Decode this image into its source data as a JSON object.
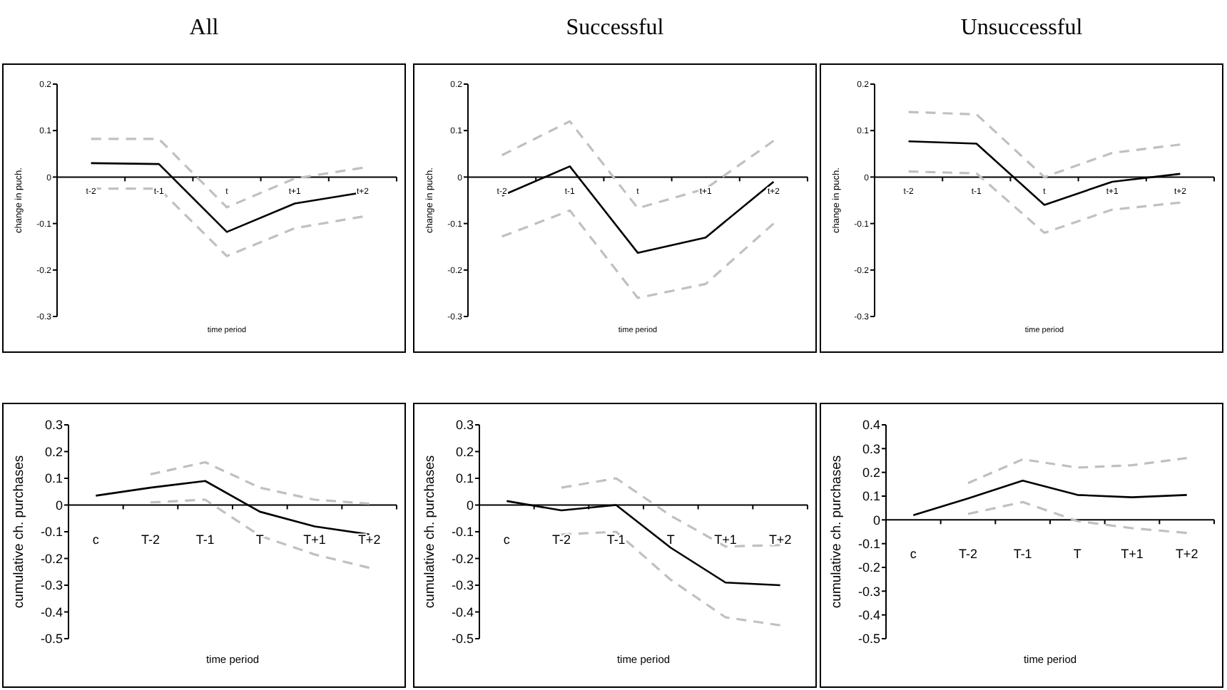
{
  "chart_data": [
    {
      "type": "line",
      "title": "All",
      "xlabel": "time period",
      "ylabel": "change in puch.",
      "categories": [
        "t-2",
        "t-1",
        "t",
        "t+1",
        "t+2"
      ],
      "ylim": [
        -0.3,
        0.2
      ],
      "yticks": [
        -0.3,
        -0.2,
        -0.1,
        0,
        0.1,
        0.2
      ],
      "series": [
        {
          "color": "#c0c0c0",
          "line_style": "dashed",
          "values": [
            0.082,
            0.082,
            -0.065,
            -0.003,
            0.02
          ]
        },
        {
          "color": "#000000",
          "line_style": "solid",
          "values": [
            0.03,
            0.028,
            -0.118,
            -0.057,
            -0.033
          ]
        },
        {
          "color": "#c0c0c0",
          "line_style": "dashed",
          "values": [
            -0.025,
            -0.025,
            -0.17,
            -0.11,
            -0.085
          ]
        }
      ]
    },
    {
      "type": "line",
      "title": "Successful",
      "xlabel": "time period",
      "ylabel": "change in puch.",
      "categories": [
        "t-2",
        "t-1",
        "t",
        "t+1",
        "t+2"
      ],
      "ylim": [
        -0.3,
        0.2
      ],
      "yticks": [
        -0.3,
        -0.2,
        -0.1,
        0,
        0.1,
        0.2
      ],
      "series": [
        {
          "color": "#c0c0c0",
          "line_style": "dashed",
          "values": [
            0.047,
            0.12,
            -0.067,
            -0.025,
            0.078
          ]
        },
        {
          "color": "#000000",
          "line_style": "solid",
          "values": [
            -0.04,
            0.023,
            -0.163,
            -0.13,
            -0.01
          ]
        },
        {
          "color": "#c0c0c0",
          "line_style": "dashed",
          "values": [
            -0.128,
            -0.072,
            -0.26,
            -0.23,
            -0.1
          ]
        }
      ]
    },
    {
      "type": "line",
      "title": "Unsuccessful",
      "xlabel": "time period",
      "ylabel": "change in puch.",
      "categories": [
        "t-2",
        "t-1",
        "t",
        "t+1",
        "t+2"
      ],
      "ylim": [
        -0.3,
        0.2
      ],
      "yticks": [
        -0.3,
        -0.2,
        -0.1,
        0,
        0.1,
        0.2
      ],
      "series": [
        {
          "color": "#c0c0c0",
          "line_style": "dashed",
          "values": [
            0.14,
            0.135,
            0.0,
            0.052,
            0.07
          ]
        },
        {
          "color": "#000000",
          "line_style": "solid",
          "values": [
            0.077,
            0.072,
            -0.06,
            -0.01,
            0.007
          ]
        },
        {
          "color": "#c0c0c0",
          "line_style": "dashed",
          "values": [
            0.012,
            0.008,
            -0.12,
            -0.07,
            -0.055
          ]
        }
      ]
    },
    {
      "type": "line",
      "xlabel": "time period",
      "ylabel": "cumulative ch. purchases",
      "categories": [
        "c",
        "T-2",
        "T-1",
        "T",
        "T+1",
        "T+2"
      ],
      "ylim": [
        -0.5,
        0.3
      ],
      "yticks": [
        -0.5,
        -0.4,
        -0.3,
        -0.2,
        -0.1,
        0,
        0.1,
        0.2,
        0.3
      ],
      "series": [
        {
          "color": "#c0c0c0",
          "line_style": "dashed",
          "values": [
            null,
            0.115,
            0.16,
            0.065,
            0.02,
            0.005
          ]
        },
        {
          "color": "#000000",
          "line_style": "solid",
          "values": [
            0.035,
            0.065,
            0.09,
            -0.025,
            -0.08,
            -0.11
          ]
        },
        {
          "color": "#c0c0c0",
          "line_style": "dashed",
          "values": [
            null,
            0.01,
            0.02,
            -0.115,
            -0.185,
            -0.235
          ]
        }
      ]
    },
    {
      "type": "line",
      "xlabel": "time period",
      "ylabel": "cumulative ch. purchases",
      "categories": [
        "c",
        "T-2",
        "T-1",
        "T",
        "T+1",
        "T+2"
      ],
      "ylim": [
        -0.5,
        0.3
      ],
      "yticks": [
        -0.5,
        -0.4,
        -0.3,
        -0.2,
        -0.1,
        0,
        0.1,
        0.2,
        0.3
      ],
      "series": [
        {
          "color": "#c0c0c0",
          "line_style": "dashed",
          "values": [
            null,
            0.065,
            0.1,
            -0.04,
            -0.155,
            -0.15
          ]
        },
        {
          "color": "#000000",
          "line_style": "solid",
          "values": [
            0.015,
            -0.02,
            0.0,
            -0.16,
            -0.29,
            -0.3
          ]
        },
        {
          "color": "#c0c0c0",
          "line_style": "dashed",
          "values": [
            null,
            -0.11,
            -0.1,
            -0.28,
            -0.42,
            -0.45
          ]
        }
      ]
    },
    {
      "type": "line",
      "xlabel": "time period",
      "ylabel": "cumulative ch. purchases",
      "categories": [
        "c",
        "T-2",
        "T-1",
        "T",
        "T+1",
        "T+2"
      ],
      "ylim": [
        -0.5,
        0.4
      ],
      "yticks": [
        -0.5,
        -0.4,
        -0.3,
        -0.2,
        -0.1,
        0,
        0.1,
        0.2,
        0.3,
        0.4
      ],
      "series": [
        {
          "color": "#c0c0c0",
          "line_style": "dashed",
          "values": [
            null,
            0.155,
            0.255,
            0.22,
            0.23,
            0.26
          ]
        },
        {
          "color": "#000000",
          "line_style": "solid",
          "values": [
            0.02,
            0.09,
            0.165,
            0.105,
            0.095,
            0.105
          ]
        },
        {
          "color": "#c0c0c0",
          "line_style": "dashed",
          "values": [
            null,
            0.025,
            0.075,
            -0.005,
            -0.035,
            -0.055
          ]
        }
      ]
    }
  ]
}
